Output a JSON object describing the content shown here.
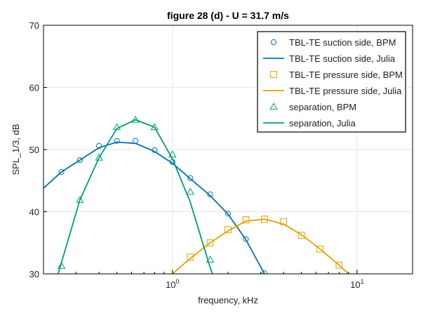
{
  "chart_data": {
    "type": "line",
    "title": "figure 28 (d) - U = 31.7 m/s",
    "xlabel": "frequency, kHz",
    "ylabel": "SPL_1/3, dB",
    "xscale": "log",
    "xlim": [
      0.2,
      20
    ],
    "ylim": [
      30,
      70
    ],
    "x_ticks": [
      {
        "value": 1,
        "base": "10",
        "exp": "0"
      },
      {
        "value": 10,
        "base": "10",
        "exp": "1"
      }
    ],
    "y_ticks": [
      30,
      40,
      50,
      60,
      70
    ],
    "grid": true,
    "legend_position": "top-right",
    "series": [
      {
        "name": "TBL-TE suction side, BPM",
        "kind": "markers",
        "marker": "circle",
        "color": "#0072B2",
        "x": [
          0.25,
          0.315,
          0.4,
          0.5,
          0.63,
          0.8,
          1.0,
          1.25,
          1.6,
          2.0,
          2.5,
          3.15
        ],
        "y": [
          46.4,
          48.3,
          50.6,
          51.4,
          51.4,
          49.9,
          48.0,
          45.4,
          42.8,
          39.7,
          35.6,
          30.1
        ]
      },
      {
        "name": "TBL-TE suction side, Julia",
        "kind": "line",
        "color": "#0072B2",
        "x": [
          0.2,
          0.25,
          0.315,
          0.4,
          0.5,
          0.63,
          0.8,
          1.0,
          1.25,
          1.6,
          2.0,
          2.5,
          3.15
        ],
        "y": [
          43.8,
          46.4,
          48.3,
          50.3,
          51.2,
          51.0,
          49.7,
          47.8,
          45.3,
          42.6,
          39.6,
          35.5,
          30.0
        ]
      },
      {
        "name": "TBL-TE pressure side, BPM",
        "kind": "markers",
        "marker": "square",
        "color": "#E69F00",
        "x": [
          1.25,
          1.6,
          2.0,
          2.5,
          3.15,
          4.0,
          5.0,
          6.3,
          8.0
        ],
        "y": [
          32.7,
          35.0,
          37.1,
          38.7,
          38.8,
          38.4,
          36.2,
          34.0,
          31.4
        ]
      },
      {
        "name": "TBL-TE pressure side, Julia",
        "kind": "line",
        "color": "#E69F00",
        "x": [
          1.0,
          1.25,
          1.6,
          2.0,
          2.5,
          3.15,
          4.0,
          5.0,
          6.3,
          8.0,
          9.0
        ],
        "y": [
          30.0,
          32.5,
          35.0,
          36.9,
          38.5,
          38.8,
          38.0,
          36.3,
          34.0,
          31.4,
          30.0
        ]
      },
      {
        "name": "separation, BPM",
        "kind": "markers",
        "marker": "triangle",
        "color": "#009E73",
        "x": [
          0.25,
          0.315,
          0.4,
          0.5,
          0.63,
          0.8,
          1.0,
          1.25,
          1.6
        ],
        "y": [
          31.3,
          41.9,
          48.7,
          53.6,
          54.8,
          53.6,
          49.2,
          43.2,
          32.3
        ]
      },
      {
        "name": "separation, Julia",
        "kind": "line",
        "color": "#009E73",
        "x": [
          0.24,
          0.315,
          0.4,
          0.5,
          0.63,
          0.8,
          1.0,
          1.25,
          1.6,
          1.65
        ],
        "y": [
          30.0,
          41.9,
          48.7,
          53.4,
          54.8,
          53.6,
          48.5,
          41.5,
          31.0,
          30.0
        ]
      }
    ]
  }
}
